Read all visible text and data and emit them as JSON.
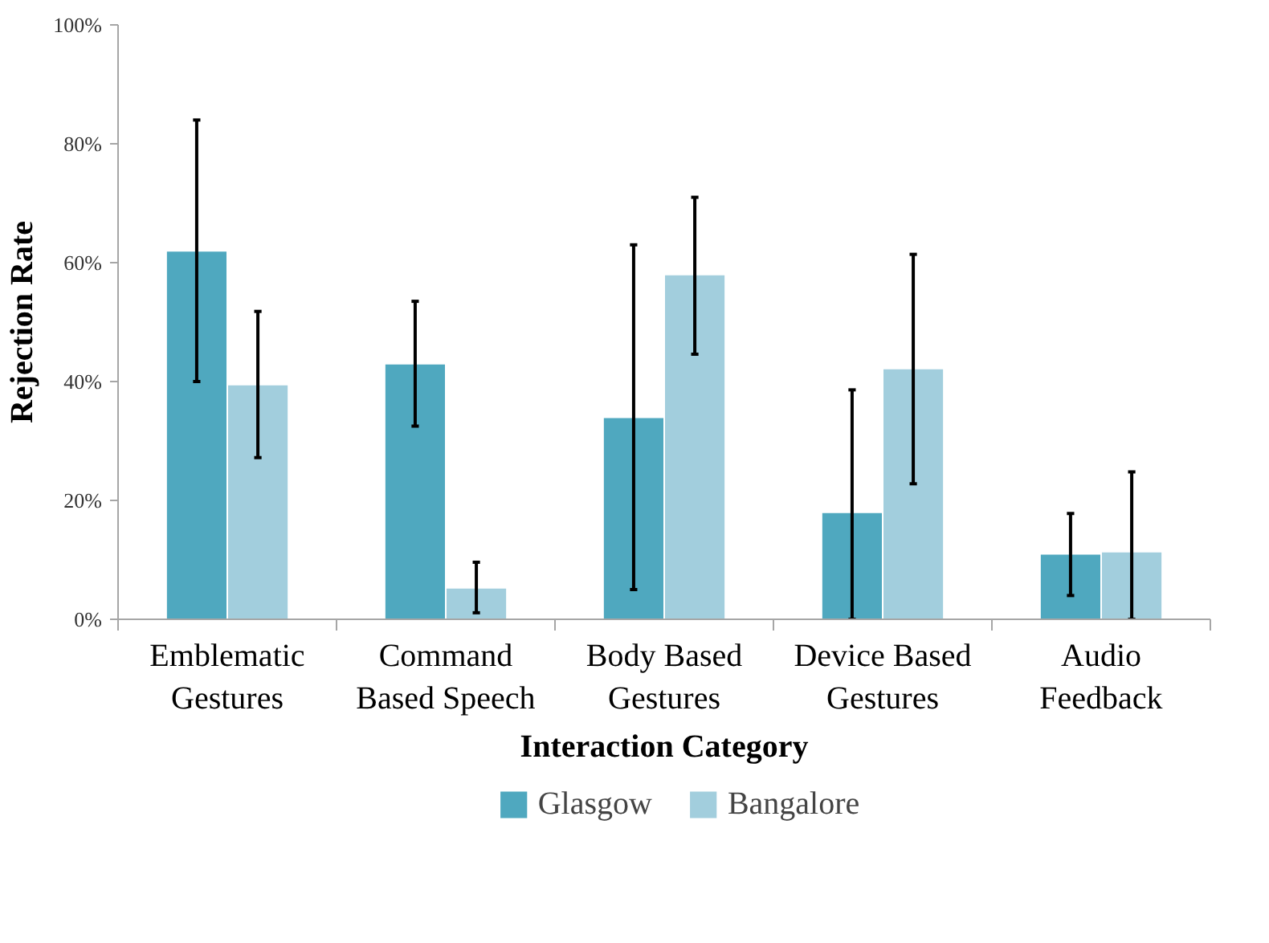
{
  "chart_data": {
    "type": "bar",
    "xlabel": "Interaction Category",
    "ylabel": "Rejection Rate",
    "categories": [
      "Emblematic\nGestures",
      "Command\nBased Speech",
      "Body Based\nGestures",
      "Device Based\nGestures",
      "Audio\nFeedback"
    ],
    "series": [
      {
        "name": "Glasgow",
        "color": "#4fa8bf",
        "values": [
          62,
          43,
          34,
          18,
          11
        ],
        "errors": [
          [
            40,
            84
          ],
          [
            32.5,
            53.5
          ],
          [
            5,
            63
          ],
          [
            0,
            38.6
          ],
          [
            4,
            17.8
          ]
        ]
      },
      {
        "name": "Bangalore",
        "color": "#a2cedd",
        "values": [
          39.5,
          5.3,
          58,
          42.2,
          11.4
        ],
        "errors": [
          [
            27.2,
            51.8
          ],
          [
            1.1,
            9.6
          ],
          [
            44.6,
            71
          ],
          [
            22.8,
            61.4
          ],
          [
            0,
            24.8
          ]
        ]
      }
    ],
    "ylim": [
      0,
      100
    ],
    "yticks": [
      {
        "value": 0,
        "label": "0%"
      },
      {
        "value": 20,
        "label": "20%"
      },
      {
        "value": 40,
        "label": "40%"
      },
      {
        "value": 60,
        "label": "60%"
      },
      {
        "value": 80,
        "label": "80%"
      },
      {
        "value": 100,
        "label": "100%"
      }
    ],
    "grid": false,
    "legend": "bottom"
  }
}
